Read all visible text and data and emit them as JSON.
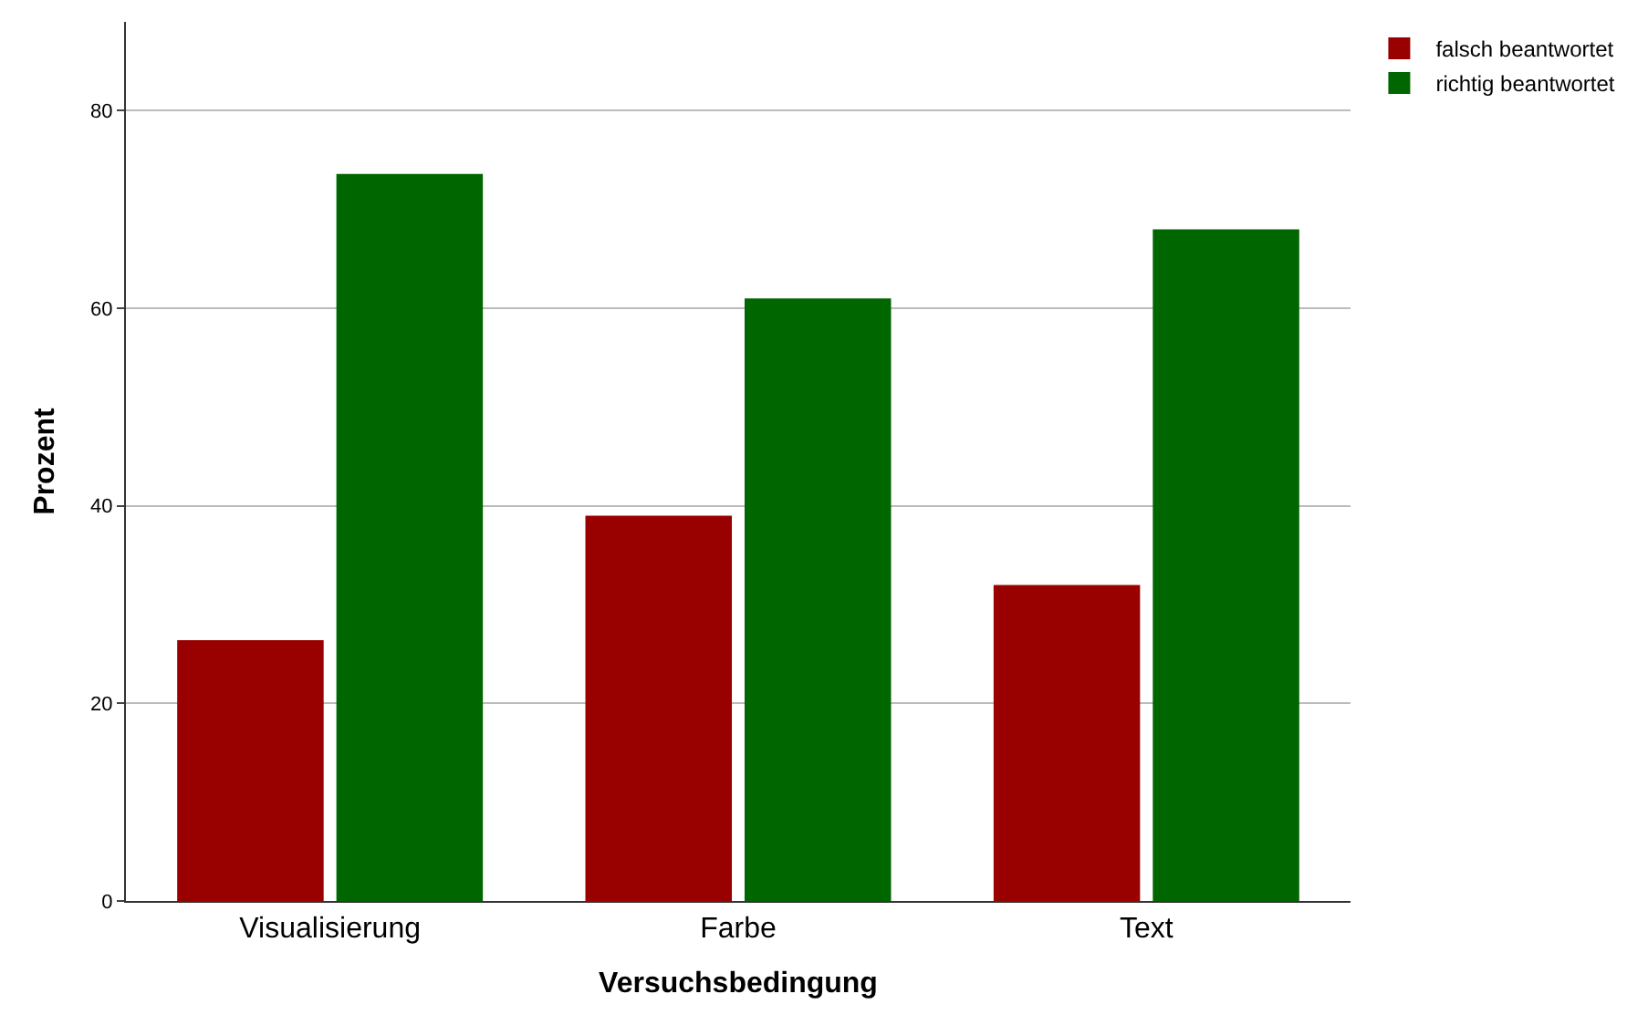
{
  "chart_data": {
    "type": "bar",
    "xlabel": "Versuchsbedingung",
    "ylabel": "Prozent",
    "categories": [
      "Visualisierung",
      "Farbe",
      "Text"
    ],
    "series": [
      {
        "name": "falsch beantwortet",
        "color": "#990000",
        "values": [
          26.4,
          39,
          32
        ]
      },
      {
        "name": "richtig beantwortet",
        "color": "#006600",
        "values": [
          73.6,
          61,
          68
        ]
      }
    ],
    "ylim": [
      0,
      89
    ],
    "yticks": [
      0,
      20,
      40,
      60,
      80
    ],
    "grid": "y",
    "legend": "top right"
  }
}
